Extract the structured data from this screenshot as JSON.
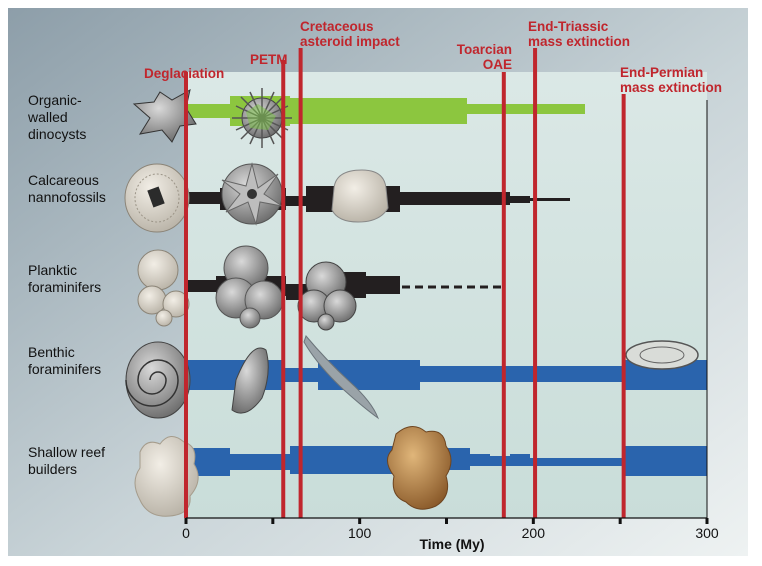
{
  "rows": [
    {
      "label": "Organic-\nwalled\ndinocysts",
      "color": "#8cc63f"
    },
    {
      "label": "Calcareous\nnannofossils",
      "color": "#231f20"
    },
    {
      "label": "Planktic\nforaminifers",
      "color": "#231f20"
    },
    {
      "label": "Benthic\nforaminifers",
      "color": "#2a64ad"
    },
    {
      "label": "Shallow reef\nbuilders",
      "color": "#2a64ad"
    }
  ],
  "events": [
    {
      "name": "Deglaciation",
      "label_lines": [
        "Deglaciation"
      ],
      "age_my": 0
    },
    {
      "name": "PETM",
      "label_lines": [
        "PETM"
      ],
      "age_my": 56
    },
    {
      "name": "Cretaceous asteroid impact",
      "label_lines": [
        "Cretaceous",
        "asteroid impact"
      ],
      "age_my": 66
    },
    {
      "name": "Toarcian OAE",
      "label_lines": [
        "Toarcian",
        "OAE"
      ],
      "age_my": 183
    },
    {
      "name": "End-Triassic mass extinction",
      "label_lines": [
        "End-Triassic",
        "mass extinction"
      ],
      "age_my": 201
    },
    {
      "name": "End-Permian mass extinction",
      "label_lines": [
        "End-Permian",
        "mass extinction"
      ],
      "age_my": 252
    }
  ],
  "axis": {
    "title": "Time (My)",
    "range": [
      0,
      300
    ],
    "ticks": [
      {
        "value": 0,
        "label": "0"
      },
      {
        "value": 50,
        "label": ""
      },
      {
        "value": 100,
        "label": "100"
      },
      {
        "value": 150,
        "label": ""
      },
      {
        "value": 200,
        "label": "200"
      },
      {
        "value": 250,
        "label": ""
      },
      {
        "value": 300,
        "label": "300"
      }
    ]
  },
  "colors": {
    "background_top": "#9aaab4",
    "background_bottom": "#e8eef0",
    "plot_bg": "#d6e6e3",
    "event_line": "#c0262d",
    "dinocyst": "#8cc63f",
    "calcareous": "#231f20",
    "benthic": "#2a64ad"
  }
}
